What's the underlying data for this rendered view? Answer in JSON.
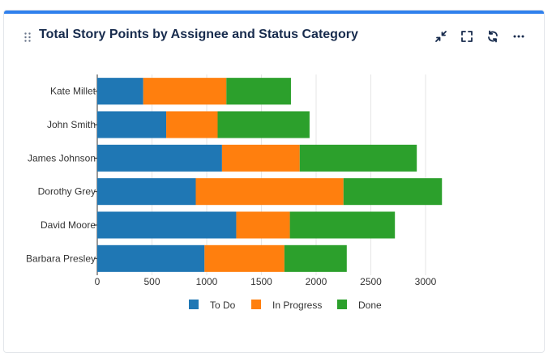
{
  "header": {
    "title": "Total Story Points by Assignee and Status Category",
    "toolbar": {
      "collapse_icon": "collapse-arrows-icon",
      "fullscreen_icon": "fullscreen-icon",
      "refresh_icon": "refresh-icon",
      "more_icon": "more-horizontal-icon"
    }
  },
  "colors": {
    "accent": "#2f80ed",
    "todo": "#1f77b4",
    "in_progress": "#ff7f0e",
    "done": "#2ca02c"
  },
  "chart_data": {
    "type": "bar",
    "orientation": "horizontal",
    "stacked": true,
    "title": "Total Story Points by Assignee and Status Category",
    "xlabel": "",
    "ylabel": "",
    "xlim": [
      0,
      3200
    ],
    "xticks": [
      0,
      500,
      1000,
      1500,
      2000,
      2500,
      3000
    ],
    "grid": true,
    "legend_position": "bottom",
    "categories": [
      "Kate Millet",
      "John Smith",
      "James Johnson",
      "Dorothy Grey",
      "David Moore",
      "Barbara Presley"
    ],
    "series": [
      {
        "name": "To Do",
        "color": "#1f77b4",
        "values": [
          420,
          630,
          1140,
          900,
          1270,
          980
        ]
      },
      {
        "name": "In Progress",
        "color": "#ff7f0e",
        "values": [
          760,
          470,
          710,
          1350,
          490,
          730
        ]
      },
      {
        "name": "Done",
        "color": "#2ca02c",
        "values": [
          590,
          840,
          1070,
          900,
          960,
          570
        ]
      }
    ]
  }
}
